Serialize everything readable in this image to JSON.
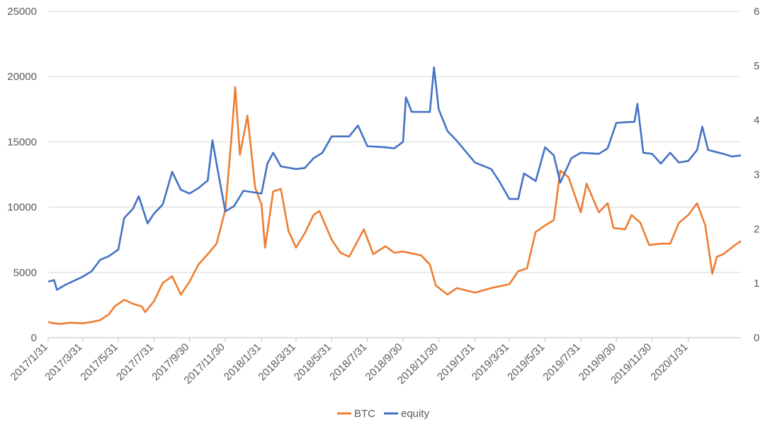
{
  "chart_data": {
    "type": "line",
    "title": "",
    "xlabel": "",
    "ylabel": "",
    "x_tick_labels": [
      "2017/1/31",
      "2017/3/31",
      "2017/5/31",
      "2017/7/31",
      "2017/9/30",
      "2017/11/30",
      "2018/1/31",
      "2018/3/31",
      "2018/5/31",
      "2018/7/31",
      "2018/9/30",
      "2018/11/30",
      "2019/1/31",
      "2019/3/31",
      "2019/5/31",
      "2019/7/31",
      "2019/9/30",
      "2019/11/30",
      "2020/1/31"
    ],
    "y_left_ticks": [
      "0",
      "5000",
      "10000",
      "15000",
      "20000",
      "25000"
    ],
    "y_right_ticks": [
      "0",
      "1",
      "2",
      "3",
      "4",
      "5",
      "6"
    ],
    "ylim_left": [
      0,
      25000
    ],
    "ylim_right": [
      0,
      6
    ],
    "grid": "horizontal",
    "legend_position": "bottom",
    "series": [
      {
        "name": "BTC",
        "axis": "left",
        "color": "#ED7D31",
        "points": [
          [
            "2017/1/31",
            1200
          ],
          [
            "2017/2/10",
            1100
          ],
          [
            "2017/2/20",
            1050
          ],
          [
            "2017/3/10",
            1150
          ],
          [
            "2017/3/31",
            1100
          ],
          [
            "2017/4/15",
            1200
          ],
          [
            "2017/4/30",
            1350
          ],
          [
            "2017/5/15",
            1800
          ],
          [
            "2017/5/25",
            2400
          ],
          [
            "2017/6/10",
            2900
          ],
          [
            "2017/6/25",
            2600
          ],
          [
            "2017/7/10",
            2400
          ],
          [
            "2017/7/16",
            1950
          ],
          [
            "2017/7/31",
            2800
          ],
          [
            "2017/8/15",
            4200
          ],
          [
            "2017/8/31",
            4700
          ],
          [
            "2017/9/15",
            3300
          ],
          [
            "2017/9/30",
            4300
          ],
          [
            "2017/10/15",
            5600
          ],
          [
            "2017/10/31",
            6400
          ],
          [
            "2017/11/15",
            7200
          ],
          [
            "2017/11/30",
            9800
          ],
          [
            "2017/12/10",
            15000
          ],
          [
            "2017/12/17",
            19200
          ],
          [
            "2017/12/25",
            14000
          ],
          [
            "2018/1/7",
            17000
          ],
          [
            "2018/1/20",
            11500
          ],
          [
            "2018/1/31",
            10200
          ],
          [
            "2018/2/6",
            6900
          ],
          [
            "2018/2/20",
            11200
          ],
          [
            "2018/3/5",
            11400
          ],
          [
            "2018/3/18",
            8200
          ],
          [
            "2018/3/31",
            6900
          ],
          [
            "2018/4/15",
            8000
          ],
          [
            "2018/4/30",
            9400
          ],
          [
            "2018/5/10",
            9700
          ],
          [
            "2018/5/31",
            7500
          ],
          [
            "2018/6/15",
            6500
          ],
          [
            "2018/6/30",
            6200
          ],
          [
            "2018/7/25",
            8300
          ],
          [
            "2018/8/10",
            6400
          ],
          [
            "2018/8/31",
            7000
          ],
          [
            "2018/9/15",
            6500
          ],
          [
            "2018/9/30",
            6600
          ],
          [
            "2018/10/31",
            6300
          ],
          [
            "2018/11/15",
            5600
          ],
          [
            "2018/11/25",
            4000
          ],
          [
            "2018/12/15",
            3300
          ],
          [
            "2018/12/31",
            3800
          ],
          [
            "2019/1/31",
            3450
          ],
          [
            "2019/2/28",
            3800
          ],
          [
            "2019/3/31",
            4100
          ],
          [
            "2019/4/15",
            5100
          ],
          [
            "2019/4/30",
            5300
          ],
          [
            "2019/5/15",
            8100
          ],
          [
            "2019/5/31",
            8600
          ],
          [
            "2019/6/15",
            9000
          ],
          [
            "2019/6/26",
            12800
          ],
          [
            "2019/7/10",
            12300
          ],
          [
            "2019/7/31",
            9600
          ],
          [
            "2019/8/10",
            11800
          ],
          [
            "2019/8/31",
            9600
          ],
          [
            "2019/9/15",
            10300
          ],
          [
            "2019/9/25",
            8400
          ],
          [
            "2019/10/15",
            8300
          ],
          [
            "2019/10/26",
            9400
          ],
          [
            "2019/11/10",
            8800
          ],
          [
            "2019/11/25",
            7100
          ],
          [
            "2019/12/15",
            7200
          ],
          [
            "2019/12/31",
            7200
          ],
          [
            "2020/1/15",
            8800
          ],
          [
            "2020/1/31",
            9400
          ],
          [
            "2020/2/15",
            10300
          ],
          [
            "2020/2/29",
            8600
          ],
          [
            "2020/3/12",
            4900
          ],
          [
            "2020/3/20",
            6200
          ],
          [
            "2020/3/31",
            6400
          ],
          [
            "2020/4/20",
            7100
          ],
          [
            "2020/4/30",
            7400
          ]
        ]
      },
      {
        "name": "equity",
        "axis": "right",
        "color": "#4472C4",
        "points": [
          [
            "2017/1/31",
            1.03
          ],
          [
            "2017/2/10",
            1.06
          ],
          [
            "2017/2/15",
            0.88
          ],
          [
            "2017/3/1",
            0.97
          ],
          [
            "2017/3/31",
            1.12
          ],
          [
            "2017/4/15",
            1.22
          ],
          [
            "2017/4/30",
            1.43
          ],
          [
            "2017/5/15",
            1.5
          ],
          [
            "2017/5/31",
            1.62
          ],
          [
            "2017/6/10",
            2.2
          ],
          [
            "2017/6/25",
            2.37
          ],
          [
            "2017/7/5",
            2.6
          ],
          [
            "2017/7/20",
            2.1
          ],
          [
            "2017/7/31",
            2.28
          ],
          [
            "2017/8/15",
            2.45
          ],
          [
            "2017/8/31",
            3.05
          ],
          [
            "2017/9/15",
            2.72
          ],
          [
            "2017/9/30",
            2.65
          ],
          [
            "2017/10/15",
            2.75
          ],
          [
            "2017/10/31",
            2.89
          ],
          [
            "2017/11/8",
            3.63
          ],
          [
            "2017/11/15",
            3.2
          ],
          [
            "2017/11/30",
            2.32
          ],
          [
            "2017/12/15",
            2.42
          ],
          [
            "2017/12/31",
            2.7
          ],
          [
            "2018/1/31",
            2.65
          ],
          [
            "2018/2/10",
            3.2
          ],
          [
            "2018/2/20",
            3.4
          ],
          [
            "2018/3/5",
            3.15
          ],
          [
            "2018/3/31",
            3.1
          ],
          [
            "2018/4/15",
            3.12
          ],
          [
            "2018/4/30",
            3.3
          ],
          [
            "2018/5/15",
            3.4
          ],
          [
            "2018/5/31",
            3.7
          ],
          [
            "2018/6/30",
            3.7
          ],
          [
            "2018/7/15",
            3.9
          ],
          [
            "2018/7/31",
            3.52
          ],
          [
            "2018/8/31",
            3.5
          ],
          [
            "2018/9/15",
            3.48
          ],
          [
            "2018/9/30",
            3.6
          ],
          [
            "2018/10/5",
            4.42
          ],
          [
            "2018/10/15",
            4.15
          ],
          [
            "2018/11/15",
            4.15
          ],
          [
            "2018/11/22",
            4.97
          ],
          [
            "2018/11/30",
            4.2
          ],
          [
            "2018/12/15",
            3.8
          ],
          [
            "2018/12/31",
            3.62
          ],
          [
            "2019/1/31",
            3.22
          ],
          [
            "2019/2/28",
            3.1
          ],
          [
            "2019/3/15",
            2.85
          ],
          [
            "2019/3/31",
            2.55
          ],
          [
            "2019/4/15",
            2.55
          ],
          [
            "2019/4/25",
            3.02
          ],
          [
            "2019/5/15",
            2.88
          ],
          [
            "2019/5/31",
            3.5
          ],
          [
            "2019/6/15",
            3.35
          ],
          [
            "2019/6/26",
            2.85
          ],
          [
            "2019/7/15",
            3.3
          ],
          [
            "2019/7/31",
            3.4
          ],
          [
            "2019/8/31",
            3.38
          ],
          [
            "2019/9/15",
            3.48
          ],
          [
            "2019/9/30",
            3.95
          ],
          [
            "2019/10/31",
            3.97
          ],
          [
            "2019/11/5",
            4.3
          ],
          [
            "2019/11/15",
            3.4
          ],
          [
            "2019/11/30",
            3.38
          ],
          [
            "2019/12/15",
            3.2
          ],
          [
            "2019/12/31",
            3.4
          ],
          [
            "2020/1/15",
            3.22
          ],
          [
            "2020/1/31",
            3.25
          ],
          [
            "2020/2/15",
            3.45
          ],
          [
            "2020/2/24",
            3.88
          ],
          [
            "2020/3/5",
            3.45
          ],
          [
            "2020/3/31",
            3.38
          ],
          [
            "2020/4/15",
            3.33
          ],
          [
            "2020/4/30",
            3.35
          ]
        ]
      }
    ]
  }
}
